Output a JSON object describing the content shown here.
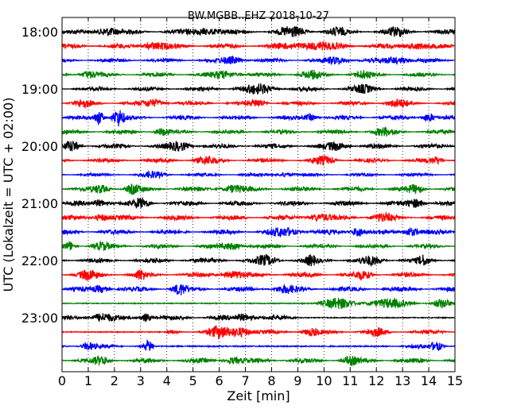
{
  "chart_data": {
    "type": "line",
    "chart_kind": "seismic helicorder",
    "title": "BW.MGBB..EHZ 2018-10-27",
    "xlabel": "Zeit  [min]",
    "ylabel": "UTC (Lokalzeit = UTC + 02:00)",
    "xlim": [
      0,
      15
    ],
    "x_ticks": [
      "0",
      "1",
      "2",
      "3",
      "4",
      "5",
      "6",
      "7",
      "8",
      "9",
      "10",
      "11",
      "12",
      "13",
      "14",
      "15"
    ],
    "y_ticks": [
      "18:00",
      "19:00",
      "20:00",
      "21:00",
      "22:00",
      "23:00"
    ],
    "grid": "vertical dotted lines at each minute",
    "trace_colors": [
      "#000000",
      "#ff0000",
      "#0000ff",
      "#008000"
    ],
    "trace_interval_minutes": 15,
    "rows": [
      {
        "start": "18:00",
        "color": "#000000",
        "amp": 3,
        "events": [
          [
            1.7,
            0.8,
            5
          ],
          [
            5.5,
            1.2,
            4
          ],
          [
            8.8,
            1.0,
            5
          ],
          [
            10.5,
            0.6,
            4
          ],
          [
            12.8,
            0.8,
            4
          ]
        ]
      },
      {
        "start": "18:15",
        "color": "#ff0000",
        "amp": 3,
        "events": [
          [
            3.5,
            1.0,
            4
          ],
          [
            9.5,
            2.0,
            4
          ],
          [
            13.5,
            0.8,
            4
          ]
        ]
      },
      {
        "start": "18:30",
        "color": "#0000ff",
        "amp": 2.5,
        "events": [
          [
            6.5,
            0.8,
            4
          ],
          [
            10.5,
            0.8,
            4
          ],
          [
            12.8,
            1.0,
            4
          ]
        ]
      },
      {
        "start": "18:45",
        "color": "#008000",
        "amp": 2.5,
        "events": [
          [
            1.0,
            0.6,
            4
          ],
          [
            6.2,
            1.0,
            4
          ],
          [
            9.5,
            0.8,
            4
          ],
          [
            11.5,
            0.6,
            4
          ]
        ]
      },
      {
        "start": "19:00",
        "color": "#000000",
        "amp": 2.5,
        "events": [
          [
            7.5,
            1.2,
            5
          ],
          [
            11.5,
            0.8,
            4
          ]
        ]
      },
      {
        "start": "19:15",
        "color": "#ff0000",
        "amp": 2.5,
        "events": [
          [
            0.8,
            0.6,
            4
          ],
          [
            3.5,
            0.8,
            4
          ],
          [
            7.5,
            0.6,
            4
          ],
          [
            12.8,
            0.8,
            4
          ]
        ]
      },
      {
        "start": "19:30",
        "color": "#0000ff",
        "amp": 2.5,
        "events": [
          [
            1.4,
            0.35,
            9
          ],
          [
            2.15,
            0.45,
            10
          ],
          [
            9.5,
            0.5,
            4
          ],
          [
            14.0,
            0.5,
            5
          ]
        ]
      },
      {
        "start": "19:45",
        "color": "#008000",
        "amp": 2.5,
        "events": [
          [
            3.8,
            0.5,
            4
          ],
          [
            12.3,
            0.8,
            4
          ]
        ]
      },
      {
        "start": "20:00",
        "color": "#000000",
        "amp": 3,
        "events": [
          [
            0.4,
            0.5,
            6
          ],
          [
            4.5,
            0.8,
            5
          ],
          [
            10.5,
            0.8,
            4
          ]
        ]
      },
      {
        "start": "20:15",
        "color": "#ff0000",
        "amp": 2.5,
        "events": [
          [
            5.5,
            0.8,
            4
          ],
          [
            10.0,
            0.8,
            4
          ],
          [
            14.3,
            0.5,
            4
          ]
        ]
      },
      {
        "start": "20:30",
        "color": "#0000ff",
        "amp": 2,
        "events": [
          [
            3.5,
            0.8,
            3
          ],
          [
            8.5,
            0.6,
            3
          ]
        ]
      },
      {
        "start": "20:45",
        "color": "#008000",
        "amp": 3,
        "events": [
          [
            1.5,
            0.6,
            4
          ],
          [
            2.7,
            0.5,
            5
          ],
          [
            6.5,
            0.8,
            4
          ],
          [
            13.5,
            0.6,
            4
          ]
        ]
      },
      {
        "start": "21:00",
        "color": "#000000",
        "amp": 3,
        "events": [
          [
            1.5,
            0.6,
            4
          ],
          [
            3.0,
            0.6,
            5
          ],
          [
            13.5,
            0.6,
            5
          ]
        ]
      },
      {
        "start": "21:15",
        "color": "#ff0000",
        "amp": 3,
        "events": [
          [
            1.5,
            0.6,
            4
          ],
          [
            9.8,
            0.8,
            4
          ],
          [
            12.2,
            0.8,
            4
          ]
        ]
      },
      {
        "start": "21:30",
        "color": "#0000ff",
        "amp": 3,
        "events": [
          [
            8.5,
            1.2,
            4
          ],
          [
            11.3,
            0.5,
            6
          ],
          [
            13.3,
            0.6,
            5
          ]
        ]
      },
      {
        "start": "21:45",
        "color": "#008000",
        "amp": 2.5,
        "events": [
          [
            0.3,
            0.4,
            5
          ],
          [
            1.5,
            0.6,
            4
          ],
          [
            6.5,
            0.8,
            4
          ]
        ]
      },
      {
        "start": "22:00",
        "color": "#000000",
        "amp": 3,
        "events": [
          [
            7.8,
            0.8,
            5
          ],
          [
            9.5,
            0.4,
            5
          ],
          [
            13.8,
            0.4,
            5
          ],
          [
            11.8,
            0.8,
            4
          ]
        ]
      },
      {
        "start": "22:15",
        "color": "#ff0000",
        "amp": 3,
        "events": [
          [
            1.0,
            0.7,
            5
          ],
          [
            3.0,
            0.4,
            5
          ],
          [
            6.5,
            0.8,
            4
          ],
          [
            11.5,
            0.6,
            4
          ]
        ]
      },
      {
        "start": "22:30",
        "color": "#0000ff",
        "amp": 3,
        "events": [
          [
            1.5,
            0.6,
            4
          ],
          [
            4.5,
            0.5,
            6
          ],
          [
            8.5,
            0.8,
            4
          ]
        ]
      },
      {
        "start": "22:45",
        "color": "#008000",
        "amp": 1.5,
        "events": [
          [
            10.5,
            1.2,
            6
          ],
          [
            12.5,
            1.5,
            5
          ],
          [
            14.5,
            0.6,
            5
          ]
        ],
        "active_from": 9.0
      },
      {
        "start": "23:00",
        "color": "#000000",
        "amp": 3,
        "events": [
          [
            1.5,
            0.8,
            5
          ],
          [
            3.2,
            0.4,
            5
          ],
          [
            7.0,
            0.8,
            4
          ]
        ],
        "active_until": 9.0
      },
      {
        "start": "23:15",
        "color": "#ff0000",
        "amp": 2.5,
        "events": [
          [
            6.0,
            0.8,
            6
          ],
          [
            6.8,
            0.8,
            6
          ],
          [
            9.5,
            0.6,
            4
          ],
          [
            12.0,
            0.6,
            4
          ]
        ],
        "active_from": 4.0
      },
      {
        "start": "23:30",
        "color": "#0000ff",
        "amp": 2.5,
        "events": [
          [
            1.0,
            0.5,
            4
          ],
          [
            3.3,
            0.3,
            6
          ],
          [
            14.3,
            0.5,
            5
          ]
        ],
        "gap": [
          3.5,
          12.5
        ]
      },
      {
        "start": "23:45",
        "color": "#008000",
        "amp": 3,
        "events": [
          [
            1.5,
            0.6,
            4
          ],
          [
            6.5,
            0.6,
            4
          ],
          [
            11.0,
            0.6,
            4
          ]
        ]
      }
    ]
  }
}
